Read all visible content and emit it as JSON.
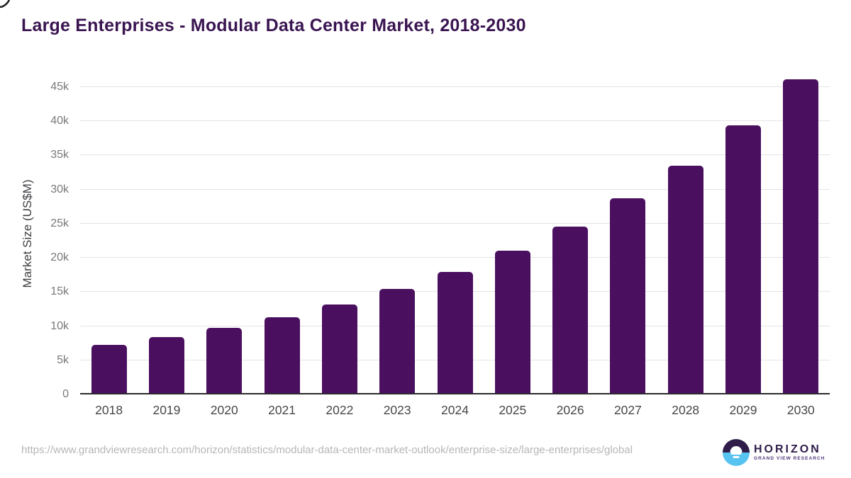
{
  "title": "Large Enterprises - Modular Data Center Market, 2018-2030",
  "chart_data": {
    "type": "bar",
    "title": "Large Enterprises - Modular Data Center Market, 2018-2030",
    "categories": [
      "2018",
      "2019",
      "2020",
      "2021",
      "2022",
      "2023",
      "2024",
      "2025",
      "2026",
      "2027",
      "2028",
      "2029",
      "2030"
    ],
    "values": [
      7300,
      8400,
      9800,
      11300,
      13200,
      15400,
      17900,
      21100,
      24600,
      28700,
      33500,
      39400,
      46100
    ],
    "xlabel": "",
    "ylabel": "Market Size (US$M)",
    "ylim": [
      0,
      45000
    ],
    "ytick_values": [
      0,
      5000,
      10000,
      15000,
      20000,
      25000,
      30000,
      35000,
      40000,
      45000
    ],
    "ytick_labels": [
      "0",
      "5k",
      "10k",
      "15k",
      "20k",
      "25k",
      "30k",
      "35k",
      "40k",
      "45k"
    ],
    "grid": true,
    "legend": false,
    "bar_color": "#4A105F"
  },
  "footer": {
    "source_url": "https://www.grandviewresearch.com/horizon/statistics/modular-data-center-market-outlook/enterprise-size/large-enterprises/global",
    "logo": {
      "title": "HORIZON",
      "subtitle": "GRAND VIEW RESEARCH"
    }
  },
  "colors": {
    "bar": "#4A105F",
    "title_text": "#3A1551",
    "logo_dark_purple": "#2F1C49",
    "logo_blue": "#57C3F0",
    "gridline": "#E4E4E6",
    "axis_line": "#2B2B2E",
    "ytick_text": "#77787B",
    "xtick_text": "#46474A",
    "url_text": "#B5B6B8"
  }
}
